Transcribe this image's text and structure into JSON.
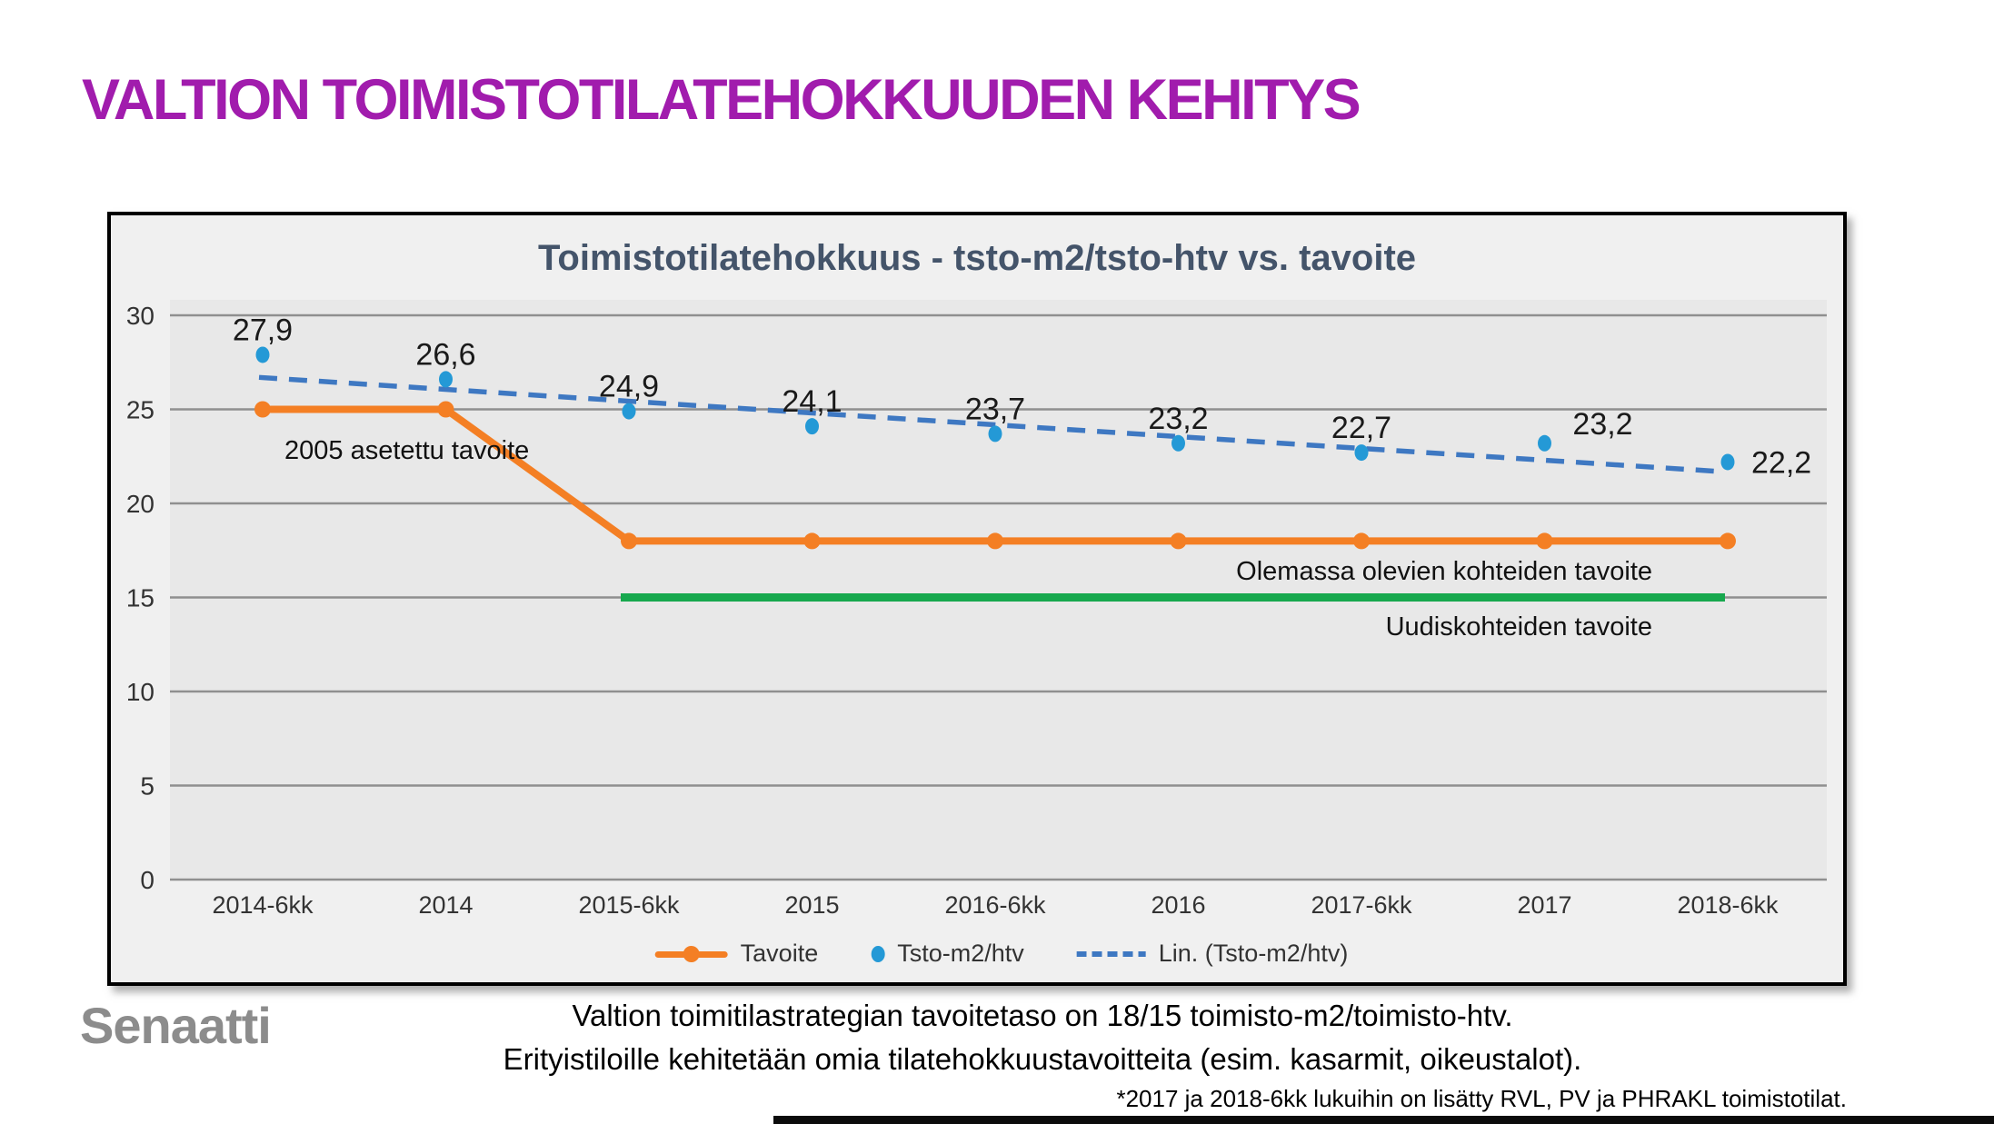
{
  "slide": {
    "title": "VALTION TOIMISTOTILATEHOKKUUDEN KEHITYS",
    "title_color": "#A11CAD"
  },
  "chart_data": {
    "type": "line",
    "title": "Toimistotilatehokkuus - tsto-m2/tsto-htv vs. tavoite",
    "title_color": "#44546A",
    "categories": [
      "2014-6kk",
      "2014",
      "2015-6kk",
      "2015",
      "2016-6kk",
      "2016",
      "2017-6kk",
      "2017",
      "2018-6kk"
    ],
    "ylim": [
      0,
      30
    ],
    "yticks": [
      0,
      5,
      10,
      15,
      20,
      25,
      30
    ],
    "grid": true,
    "plot_bg": "#E8E8E8",
    "frame_bg": "#F0F0F0",
    "grid_color": "#8F8F8F",
    "axis_text_color": "#333333",
    "label_text_color": "#1A1A1A",
    "legend_position": "bottom",
    "series": [
      {
        "name": "Tavoite",
        "type": "line",
        "color": "#F47F24",
        "values": [
          25,
          25,
          18,
          18,
          18,
          18,
          18,
          18,
          18
        ]
      },
      {
        "name": "Tsto-m2/htv",
        "type": "scatter",
        "color": "#2499D6",
        "values": [
          27.9,
          26.6,
          24.9,
          24.1,
          23.7,
          23.2,
          22.7,
          23.2,
          22.2
        ],
        "point_labels": [
          "27,9",
          "26,6",
          "24,9",
          "24,1",
          "23,7",
          "23,2",
          "22,7",
          "23,2",
          "22,2"
        ],
        "label_positions": [
          "above",
          "above",
          "above",
          "above",
          "above",
          "above",
          "above",
          "above-right",
          "right"
        ]
      },
      {
        "name": "Lin. (Tsto-m2/htv)",
        "type": "trendline",
        "color": "#3E78C2",
        "dashed": true,
        "y_start": 26.7,
        "y_end": 21.7
      }
    ],
    "reference_lines": [
      {
        "value": 15,
        "color": "#17A84E",
        "from_category": "2015-6kk",
        "to_category": "2018-6kk"
      }
    ],
    "annotations": [
      {
        "text": "2005 asetettu tavoite"
      },
      {
        "text": "Olemassa olevien kohteiden tavoite"
      },
      {
        "text": "Uudiskohteiden tavoite"
      }
    ],
    "legend": [
      "Tavoite",
      "Tsto-m2/htv",
      "Lin. (Tsto-m2/htv)"
    ]
  },
  "footer": {
    "logo_text": "Senaatti",
    "note_line1": "Valtion toimitilastrategian tavoitetaso on 18/15 toimisto-m2/toimisto-htv.",
    "note_line2": "Erityistiloille kehitetään omia tilatehokkuustavoitteita (esim. kasarmit, oikeustalot).",
    "footnote": "*2017 ja 2018-6kk lukuihin on lisätty RVL, PV ja PHRAKL toimistotilat."
  }
}
